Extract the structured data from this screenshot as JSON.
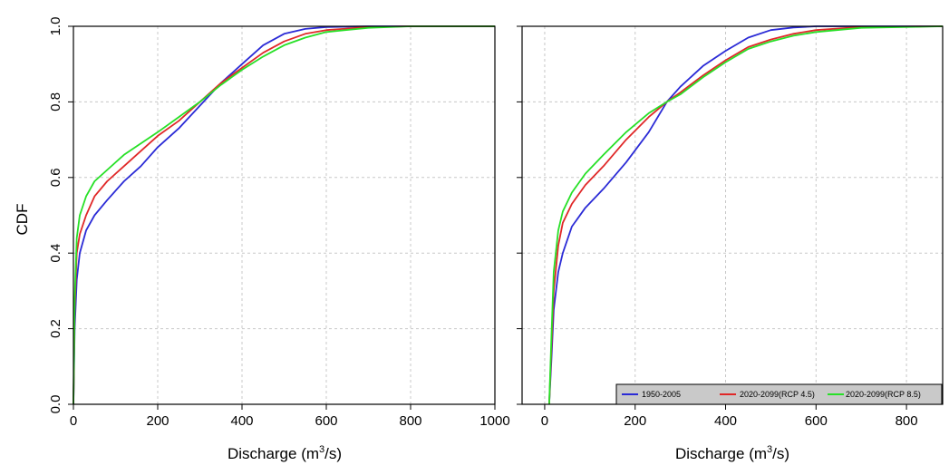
{
  "colors": {
    "series_1950": "#2b2bd6",
    "series_rcp45": "#e02828",
    "series_rcp85": "#27e027",
    "grid": "#c8c8c8",
    "legend_bg": "#c9c9c9"
  },
  "shared": {
    "ylabel": "CDF",
    "xlabel_main": "Discharge (m",
    "xlabel_sup": "3",
    "xlabel_tail": "/s)"
  },
  "legend": {
    "placement": "bottom-right of right panel",
    "entries": [
      "1950-2005",
      "2020-2099(RCP 4.5)",
      "2020-2099(RCP 8.5)"
    ]
  },
  "chart_data": [
    {
      "type": "line",
      "panel": "left",
      "xlim": [
        0,
        1000
      ],
      "ylim": [
        0,
        1
      ],
      "x_ticks": [
        "0",
        "200",
        "400",
        "600",
        "800",
        "1000"
      ],
      "y_ticks": [
        "0.0",
        "0.2",
        "0.4",
        "0.6",
        "0.8",
        "1.0"
      ],
      "grid": true,
      "series": [
        {
          "name": "1950-2005",
          "points": [
            [
              0,
              0
            ],
            [
              3,
              0.2
            ],
            [
              8,
              0.33
            ],
            [
              15,
              0.4
            ],
            [
              30,
              0.46
            ],
            [
              50,
              0.5
            ],
            [
              80,
              0.54
            ],
            [
              120,
              0.59
            ],
            [
              160,
              0.63
            ],
            [
              200,
              0.68
            ],
            [
              250,
              0.73
            ],
            [
              300,
              0.79
            ],
            [
              350,
              0.85
            ],
            [
              400,
              0.9
            ],
            [
              450,
              0.95
            ],
            [
              500,
              0.98
            ],
            [
              550,
              0.993
            ],
            [
              600,
              0.998
            ],
            [
              700,
              1
            ],
            [
              1000,
              1
            ]
          ]
        },
        {
          "name": "2020-2099(RCP 4.5)",
          "points": [
            [
              0,
              0
            ],
            [
              3,
              0.25
            ],
            [
              8,
              0.4
            ],
            [
              15,
              0.45
            ],
            [
              30,
              0.5
            ],
            [
              50,
              0.55
            ],
            [
              80,
              0.59
            ],
            [
              120,
              0.63
            ],
            [
              160,
              0.67
            ],
            [
              200,
              0.71
            ],
            [
              250,
              0.75
            ],
            [
              300,
              0.8
            ],
            [
              350,
              0.85
            ],
            [
              400,
              0.89
            ],
            [
              450,
              0.93
            ],
            [
              500,
              0.96
            ],
            [
              550,
              0.98
            ],
            [
              600,
              0.99
            ],
            [
              700,
              0.998
            ],
            [
              800,
              1
            ],
            [
              1000,
              1
            ]
          ]
        },
        {
          "name": "2020-2099(RCP 8.5)",
          "points": [
            [
              0,
              0
            ],
            [
              3,
              0.28
            ],
            [
              8,
              0.44
            ],
            [
              15,
              0.5
            ],
            [
              30,
              0.55
            ],
            [
              50,
              0.59
            ],
            [
              80,
              0.62
            ],
            [
              120,
              0.66
            ],
            [
              160,
              0.69
            ],
            [
              200,
              0.72
            ],
            [
              250,
              0.76
            ],
            [
              300,
              0.8
            ],
            [
              350,
              0.845
            ],
            [
              400,
              0.885
            ],
            [
              450,
              0.92
            ],
            [
              500,
              0.95
            ],
            [
              550,
              0.97
            ],
            [
              600,
              0.985
            ],
            [
              700,
              0.996
            ],
            [
              800,
              1
            ],
            [
              1000,
              1
            ]
          ]
        }
      ]
    },
    {
      "type": "line",
      "panel": "right",
      "xlim": [
        -50,
        880
      ],
      "ylim": [
        0,
        1
      ],
      "x_ticks": [
        "0",
        "200",
        "400",
        "600",
        "800"
      ],
      "y_ticks": [
        "0.0",
        "0.2",
        "0.4",
        "0.6",
        "0.8",
        "1.0"
      ],
      "grid": true,
      "series": [
        {
          "name": "1950-2005",
          "points": [
            [
              10,
              0
            ],
            [
              15,
              0.12
            ],
            [
              20,
              0.25
            ],
            [
              30,
              0.35
            ],
            [
              40,
              0.4
            ],
            [
              60,
              0.47
            ],
            [
              90,
              0.52
            ],
            [
              130,
              0.57
            ],
            [
              180,
              0.64
            ],
            [
              230,
              0.72
            ],
            [
              270,
              0.8
            ],
            [
              300,
              0.84
            ],
            [
              350,
              0.895
            ],
            [
              400,
              0.935
            ],
            [
              450,
              0.97
            ],
            [
              500,
              0.99
            ],
            [
              550,
              0.997
            ],
            [
              600,
              1
            ],
            [
              880,
              1
            ]
          ]
        },
        {
          "name": "2020-2099(RCP 4.5)",
          "points": [
            [
              10,
              0
            ],
            [
              15,
              0.15
            ],
            [
              20,
              0.3
            ],
            [
              30,
              0.42
            ],
            [
              40,
              0.48
            ],
            [
              60,
              0.53
            ],
            [
              90,
              0.58
            ],
            [
              130,
              0.63
            ],
            [
              180,
              0.7
            ],
            [
              230,
              0.76
            ],
            [
              270,
              0.8
            ],
            [
              300,
              0.825
            ],
            [
              350,
              0.87
            ],
            [
              400,
              0.91
            ],
            [
              450,
              0.945
            ],
            [
              500,
              0.965
            ],
            [
              550,
              0.98
            ],
            [
              600,
              0.99
            ],
            [
              700,
              0.998
            ],
            [
              880,
              1
            ]
          ]
        },
        {
          "name": "2020-2099(RCP 8.5)",
          "points": [
            [
              10,
              0
            ],
            [
              15,
              0.18
            ],
            [
              20,
              0.35
            ],
            [
              30,
              0.46
            ],
            [
              40,
              0.51
            ],
            [
              60,
              0.56
            ],
            [
              90,
              0.61
            ],
            [
              130,
              0.66
            ],
            [
              180,
              0.72
            ],
            [
              230,
              0.77
            ],
            [
              270,
              0.8
            ],
            [
              300,
              0.82
            ],
            [
              350,
              0.865
            ],
            [
              400,
              0.905
            ],
            [
              450,
              0.94
            ],
            [
              500,
              0.96
            ],
            [
              550,
              0.975
            ],
            [
              600,
              0.985
            ],
            [
              700,
              0.996
            ],
            [
              880,
              1
            ]
          ]
        }
      ]
    }
  ]
}
